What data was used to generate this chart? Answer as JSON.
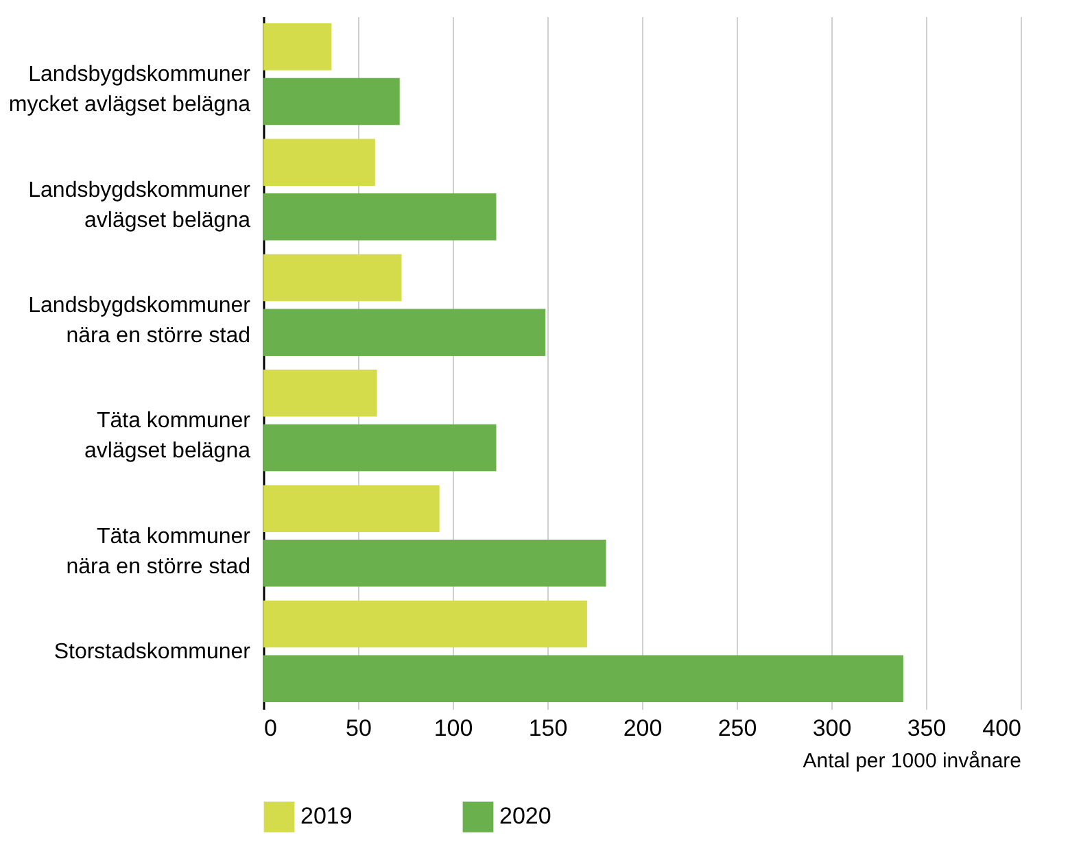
{
  "chart_data": {
    "type": "bar",
    "orientation": "horizontal",
    "xlabel": "Antal per 1000 invånare",
    "categories": [
      "Landsbygdskommuner\nmycket avlägset belägna",
      "Landsbygdskommuner\navlägset belägna",
      "Landsbygdskommuner\nnära en större stad",
      "Täta kommuner\navlägset belägna",
      "Täta kommuner\nnära en större stad",
      "Storstadskommuner"
    ],
    "series": [
      {
        "name": "2019",
        "color": "#d4dc4c",
        "values": [
          36,
          59,
          73,
          60,
          93,
          171
        ]
      },
      {
        "name": "2020",
        "color": "#6ab04c",
        "values": [
          72,
          123,
          149,
          123,
          181,
          338
        ]
      }
    ],
    "xlim": [
      0,
      400
    ],
    "xticks": [
      0,
      50,
      100,
      150,
      200,
      250,
      300,
      350,
      400
    ],
    "grid": "x",
    "legend": "bottom left"
  }
}
